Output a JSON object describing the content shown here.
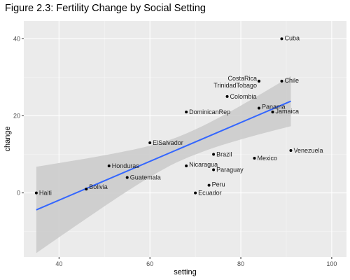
{
  "chart_data": {
    "type": "scatter",
    "title": "Figure 2.3: Fertility Change by Social Setting",
    "xlabel": "setting",
    "ylabel": "change",
    "xlim": [
      32.25,
      103.25
    ],
    "ylim": [
      -16.6,
      44.6
    ],
    "xticks": [
      40,
      60,
      80,
      100
    ],
    "yticks": [
      0,
      20,
      40
    ],
    "grid": true,
    "points": [
      {
        "label": "Bolivia",
        "x": 46,
        "y": 1
      },
      {
        "label": "Brazil",
        "x": 74,
        "y": 10
      },
      {
        "label": "Chile",
        "x": 89,
        "y": 29
      },
      {
        "label": "Colombia",
        "x": 77,
        "y": 25
      },
      {
        "label": "CostaRica",
        "x": 84,
        "y": 29
      },
      {
        "label": "Cuba",
        "x": 89,
        "y": 40
      },
      {
        "label": "DominicanRep",
        "x": 68,
        "y": 21
      },
      {
        "label": "Ecuador",
        "x": 70,
        "y": 0
      },
      {
        "label": "ElSalvador",
        "x": 60,
        "y": 13
      },
      {
        "label": "Guatemala",
        "x": 55,
        "y": 4
      },
      {
        "label": "Haiti",
        "x": 35,
        "y": 0
      },
      {
        "label": "Honduras",
        "x": 51,
        "y": 7
      },
      {
        "label": "Jamaica",
        "x": 87,
        "y": 21
      },
      {
        "label": "Mexico",
        "x": 83,
        "y": 9
      },
      {
        "label": "Nicaragua",
        "x": 68,
        "y": 7
      },
      {
        "label": "Panama",
        "x": 84,
        "y": 22
      },
      {
        "label": "Paraguay",
        "x": 74,
        "y": 6
      },
      {
        "label": "Peru",
        "x": 73,
        "y": 2
      },
      {
        "label": "TrinidadTobago",
        "x": 84,
        "y": 29
      },
      {
        "label": "Venezuela",
        "x": 91,
        "y": 11
      }
    ],
    "fit": {
      "method": "lm",
      "x": [
        35,
        91
      ],
      "y": [
        -4.4,
        23.8
      ],
      "band_lower": [
        -15.6,
        17.3
      ],
      "band_upper": [
        6.8,
        30.3
      ]
    },
    "colors": {
      "panel": "#ebebeb",
      "grid_major": "#ffffff",
      "grid_minor": "#f5f5f5",
      "points": "#000000",
      "fit_line": "#3366ff",
      "band": "#cccccc"
    }
  }
}
